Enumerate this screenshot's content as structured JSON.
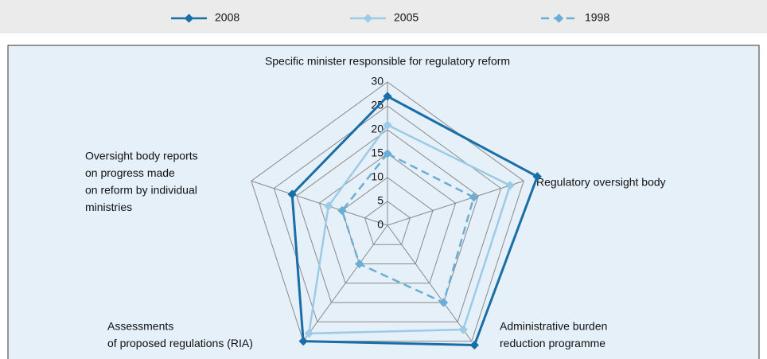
{
  "chart_data": {
    "type": "radar",
    "categories": [
      [
        "Specific minister responsible for regulatory reform"
      ],
      [
        "Regulatory oversight body"
      ],
      [
        "Administrative burden",
        "reduction programme"
      ],
      [
        "Assessments",
        "of proposed regulations (RIA)"
      ],
      [
        "Oversight body reports",
        "on progress made",
        "on reform by individual",
        "ministries"
      ]
    ],
    "series": [
      {
        "name": "2008",
        "color": "#1a6ea8",
        "dashed": false,
        "values": [
          27,
          33,
          31,
          30,
          21
        ]
      },
      {
        "name": "2005",
        "color": "#9ccbe6",
        "dashed": false,
        "values": [
          21,
          27,
          27,
          28,
          13
        ]
      },
      {
        "name": "1998",
        "color": "#6aaed6",
        "dashed": true,
        "values": [
          15,
          19,
          20,
          10,
          10
        ]
      }
    ],
    "ylim": [
      0,
      30
    ],
    "yticks": [
      0,
      5,
      10,
      15,
      20,
      25,
      30
    ],
    "grid": true,
    "legend": "top"
  }
}
